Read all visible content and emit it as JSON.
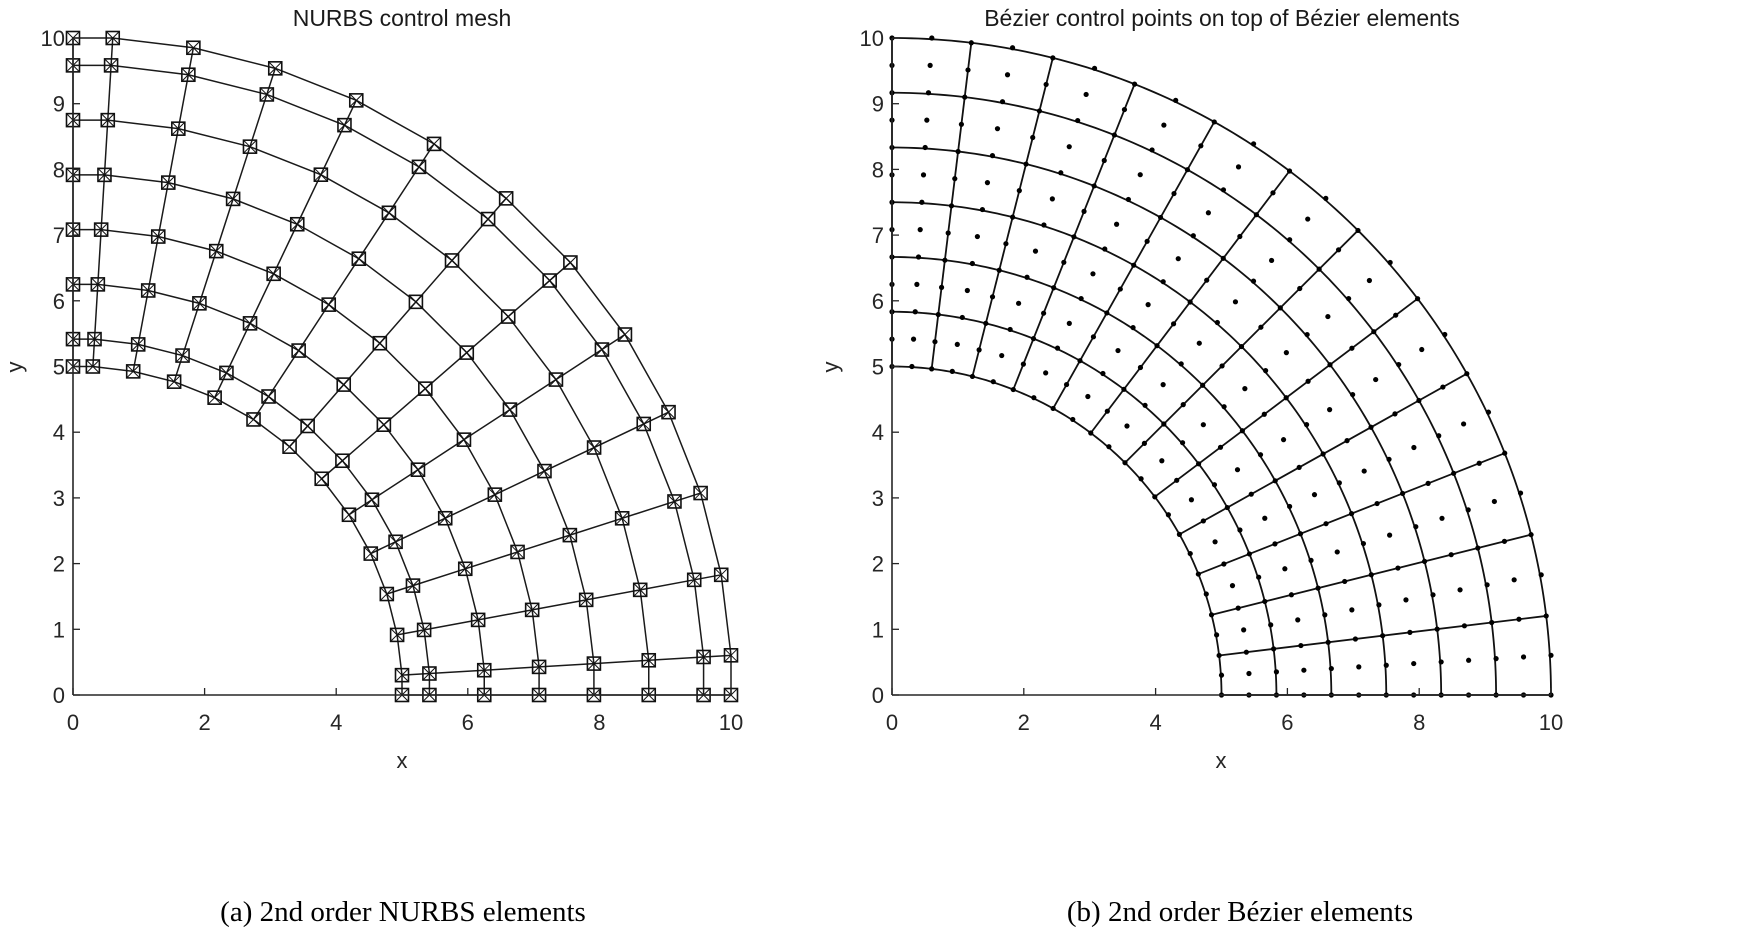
{
  "figure": {
    "captions": {
      "left": "(a) 2nd order NURBS elements",
      "right": "(b) 2nd order Bézier elements"
    }
  },
  "plots": [
    {
      "id": "left",
      "title": "NURBS control mesh",
      "xlabel": "x",
      "ylabel": "y",
      "xticks": [
        "0",
        "2",
        "4",
        "6",
        "8",
        "10"
      ],
      "yticks": [
        "0",
        "1",
        "2",
        "3",
        "4",
        "5",
        "6",
        "7",
        "8",
        "9",
        "10"
      ]
    },
    {
      "id": "right",
      "title": "Bézier control points on top of Bézier elements",
      "xlabel": "x",
      "ylabel": "y",
      "xticks": [
        "0",
        "2",
        "4",
        "6",
        "8",
        "10"
      ],
      "yticks": [
        "0",
        "1",
        "2",
        "3",
        "4",
        "5",
        "6",
        "7",
        "8",
        "9",
        "10"
      ]
    }
  ],
  "chart_data": [
    {
      "type": "scatter",
      "title": "NURBS control mesh",
      "xlabel": "x",
      "ylabel": "y",
      "xlim": [
        0,
        10
      ],
      "ylim": [
        0,
        10
      ],
      "xticks": [
        0,
        2,
        4,
        6,
        8,
        10
      ],
      "yticks": [
        0,
        1,
        2,
        3,
        4,
        5,
        6,
        7,
        8,
        9,
        10
      ],
      "grid": false,
      "geometry": {
        "shape": "quarter annulus",
        "inner_radius": 5,
        "outer_radius": 10,
        "degree": 2,
        "angular_elements": 12,
        "radial_elements": 6,
        "angular_control_points": 14,
        "radial_control_points": 8
      },
      "marker": "square with inscribed cross",
      "series": [
        {
          "name": "outer row control points (r=10)",
          "points": [
            [
              0,
              10
            ],
            [
              0.6,
              10
            ],
            [
              1.8,
              9.85
            ],
            [
              3.05,
              9.55
            ],
            [
              4.3,
              9.05
            ],
            [
              5.4,
              8.4
            ],
            [
              6.6,
              7.55
            ],
            [
              7.55,
              6.6
            ],
            [
              8.4,
              5.4
            ],
            [
              9.05,
              4.3
            ],
            [
              9.55,
              3.05
            ],
            [
              9.85,
              1.8
            ],
            [
              10,
              0.6
            ],
            [
              10,
              0
            ]
          ]
        },
        {
          "name": "inner row control points (r=5)",
          "points": [
            [
              0,
              5
            ],
            [
              0.3,
              5
            ],
            [
              0.9,
              4.92
            ],
            [
              1.52,
              4.78
            ],
            [
              2.15,
              4.53
            ],
            [
              2.7,
              4.2
            ],
            [
              3.3,
              3.78
            ],
            [
              3.78,
              3.3
            ],
            [
              4.2,
              2.7
            ],
            [
              4.53,
              2.15
            ],
            [
              4.78,
              1.52
            ],
            [
              4.92,
              0.9
            ],
            [
              5,
              0.3
            ],
            [
              5,
              0
            ]
          ]
        },
        {
          "name": "control point radii along y-axis",
          "values": [
            5,
            5.42,
            6.25,
            7.08,
            7.92,
            8.75,
            9.58,
            10
          ]
        }
      ]
    },
    {
      "type": "scatter",
      "title": "Bézier control points on top of Bézier elements",
      "xlabel": "x",
      "ylabel": "y",
      "xlim": [
        0,
        10
      ],
      "ylim": [
        0,
        10
      ],
      "xticks": [
        0,
        2,
        4,
        6,
        8,
        10
      ],
      "yticks": [
        0,
        1,
        2,
        3,
        4,
        5,
        6,
        7,
        8,
        9,
        10
      ],
      "grid": false,
      "geometry": {
        "shape": "quarter annulus",
        "inner_radius": 5,
        "outer_radius": 10,
        "degree": 2,
        "angular_elements": 12,
        "radial_elements": 6,
        "control_points_per_element": 9
      },
      "marker": "dot",
      "series": [
        {
          "name": "element boundary radii",
          "values": [
            5,
            5.83,
            6.67,
            7.5,
            8.33,
            9.17,
            10
          ]
        },
        {
          "name": "outer arc element boundaries (r=10)",
          "points": [
            [
              0,
              10
            ],
            [
              1.2,
              9.9
            ],
            [
              2.45,
              9.7
            ],
            [
              3.7,
              9.3
            ],
            [
              4.85,
              8.75
            ],
            [
              6.0,
              8.0
            ],
            [
              7.05,
              7.05
            ],
            [
              8.0,
              6.0
            ],
            [
              8.75,
              4.85
            ],
            [
              9.3,
              3.7
            ],
            [
              9.7,
              2.45
            ],
            [
              9.9,
              1.2
            ],
            [
              10,
              0
            ]
          ]
        }
      ]
    }
  ]
}
